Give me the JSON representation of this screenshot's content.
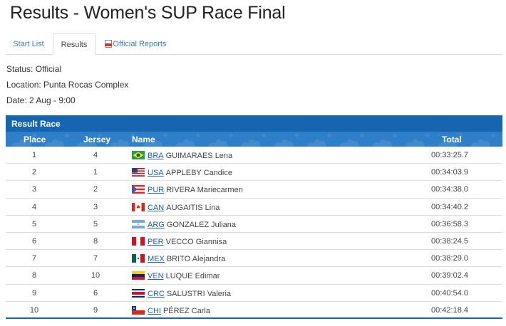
{
  "page": {
    "title": "Results - Women's SUP Race Final"
  },
  "tabs": [
    {
      "label": "Start List"
    },
    {
      "label": "Results"
    },
    {
      "label": "Official Reports",
      "icon": "pdf-icon"
    }
  ],
  "info": {
    "status": "Status:  Official",
    "location": "Location: Punta Rocas Complex",
    "date": "Date:  2 Aug - 9:00"
  },
  "table": {
    "section_title": "Result Race",
    "headers": {
      "place": "Place",
      "jersey": "Jersey",
      "name": "Name",
      "total": "Total"
    },
    "rows": [
      {
        "place": "1",
        "jersey": "4",
        "country": "BRA",
        "name": "GUIMARAES Lena",
        "total": "00:33:25.7"
      },
      {
        "place": "2",
        "jersey": "1",
        "country": "USA",
        "name": "APPLEBY Candice",
        "total": "00:34:03.9"
      },
      {
        "place": "3",
        "jersey": "2",
        "country": "PUR",
        "name": "RIVERA Mariecarmen",
        "total": "00:34:38.0"
      },
      {
        "place": "4",
        "jersey": "3",
        "country": "CAN",
        "name": "AUGAITIS Lina",
        "total": "00:34:40.2"
      },
      {
        "place": "5",
        "jersey": "5",
        "country": "ARG",
        "name": "GONZALEZ Juliana",
        "total": "00:36:58.3"
      },
      {
        "place": "6",
        "jersey": "8",
        "country": "PER",
        "name": "VECCO Giannisa",
        "total": "00:38:24.5"
      },
      {
        "place": "7",
        "jersey": "7",
        "country": "MEX",
        "name": "BRITO Alejandra",
        "total": "00:38:29.0"
      },
      {
        "place": "8",
        "jersey": "10",
        "country": "VEN",
        "name": "LUQUE Edimar",
        "total": "00:39:02.4"
      },
      {
        "place": "9",
        "jersey": "6",
        "country": "CRC",
        "name": "SALUSTRI Valeria",
        "total": "00:40:54.0"
      },
      {
        "place": "10",
        "jersey": "9",
        "country": "CHI",
        "name": "PÉREZ Carla",
        "total": "00:42:18.4"
      }
    ]
  },
  "colors": {
    "header_dark": "#1565b0",
    "header_light": "#2e7ec8",
    "link": "#1f5fa8"
  }
}
